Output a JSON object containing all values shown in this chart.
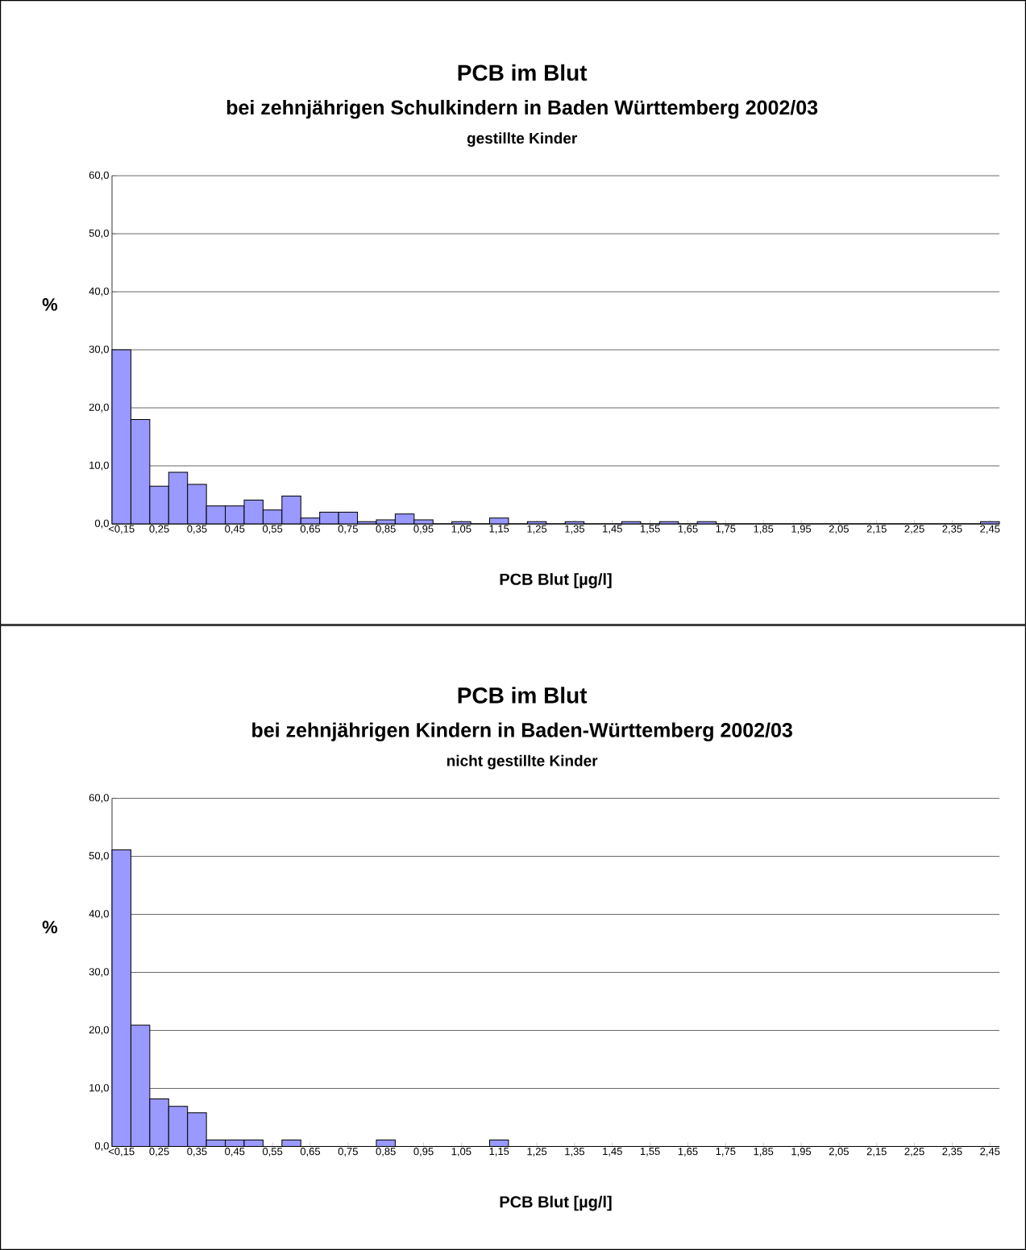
{
  "chart_data": [
    {
      "type": "bar",
      "title": "PCB im Blut",
      "subtitle": "bei zehnjährigen Schulkindern in Baden Württemberg 2002/03",
      "annotations": [
        "gestillte Kinder"
      ],
      "xlabel": "PCB Blut [µg/l]",
      "ylabel": "%",
      "categories": [
        "<0,15",
        null,
        "0,25",
        null,
        "0,35",
        null,
        "0,45",
        null,
        "0,55",
        null,
        "0,65",
        null,
        "0,75",
        null,
        "0,85",
        null,
        "0,95",
        null,
        "1,05",
        null,
        "1,15",
        null,
        "1,25",
        null,
        "1,35",
        null,
        "1,45",
        null,
        "1,55",
        null,
        "1,65",
        null,
        "1,75",
        null,
        "1,85",
        null,
        "1,95",
        null,
        "2,05",
        null,
        "2,15",
        null,
        "2,25",
        null,
        "2,35",
        null,
        "2,45"
      ],
      "values": [
        30.0,
        18.0,
        6.5,
        8.9,
        6.8,
        3.1,
        3.1,
        4.1,
        2.4,
        4.8,
        1.0,
        2.0,
        2.0,
        0.4,
        0.7,
        1.7,
        0.7,
        0,
        0.4,
        0,
        1.0,
        0,
        0.4,
        0,
        0.4,
        0,
        0,
        0.4,
        0,
        0.4,
        0,
        0.4,
        0,
        0,
        0,
        0,
        0,
        0,
        0,
        0,
        0,
        0,
        0,
        0,
        0,
        0,
        0.4
      ],
      "color": "#9999ff",
      "ylim": [
        0,
        60
      ],
      "yticks": [
        {
          "value": 0,
          "label": "0,0"
        },
        {
          "value": 10,
          "label": "10,0"
        },
        {
          "value": 20,
          "label": "20,0"
        },
        {
          "value": 30,
          "label": "30,0"
        },
        {
          "value": 40,
          "label": "40,0"
        },
        {
          "value": 50,
          "label": "50,0"
        },
        {
          "value": 60,
          "label": "60,0"
        }
      ],
      "grid": "y"
    },
    {
      "type": "bar",
      "title": "PCB im Blut",
      "subtitle": "bei zehnjährigen Kindern in Baden-Württemberg 2002/03",
      "annotations": [
        "nicht gestillte Kinder"
      ],
      "xlabel": "PCB Blut [µg/l]",
      "ylabel": "%",
      "categories": [
        "<0,15",
        null,
        "0,25",
        null,
        "0,35",
        null,
        "0,45",
        null,
        "0,55",
        null,
        "0,65",
        null,
        "0,75",
        null,
        "0,85",
        null,
        "0,95",
        null,
        "1,05",
        null,
        "1,15",
        null,
        "1,25",
        null,
        "1,35",
        null,
        "1,45",
        null,
        "1,55",
        null,
        "1,65",
        null,
        "1,75",
        null,
        "1,85",
        null,
        "1,95",
        null,
        "2,05",
        null,
        "2,15",
        null,
        "2,25",
        null,
        "2,35",
        null,
        "2,45"
      ],
      "values": [
        51.1,
        20.9,
        8.2,
        6.9,
        5.8,
        1.1,
        1.1,
        1.1,
        0,
        1.1,
        0,
        0,
        0,
        0,
        1.1,
        0,
        0,
        0,
        0,
        0,
        1.1,
        0,
        0,
        0,
        0,
        0,
        0,
        0,
        0,
        0,
        0,
        0,
        0,
        0,
        0,
        0,
        0,
        0,
        0,
        0,
        0,
        0,
        0,
        0,
        0,
        0,
        0
      ],
      "color": "#9999ff",
      "ylim": [
        0,
        60
      ],
      "yticks": [
        {
          "value": 0,
          "label": "0,0"
        },
        {
          "value": 10,
          "label": "10,0"
        },
        {
          "value": 20,
          "label": "20,0"
        },
        {
          "value": 30,
          "label": "30,0"
        },
        {
          "value": 40,
          "label": "40,0"
        },
        {
          "value": 50,
          "label": "50,0"
        },
        {
          "value": 60,
          "label": "60,0"
        }
      ],
      "grid": "y"
    }
  ]
}
